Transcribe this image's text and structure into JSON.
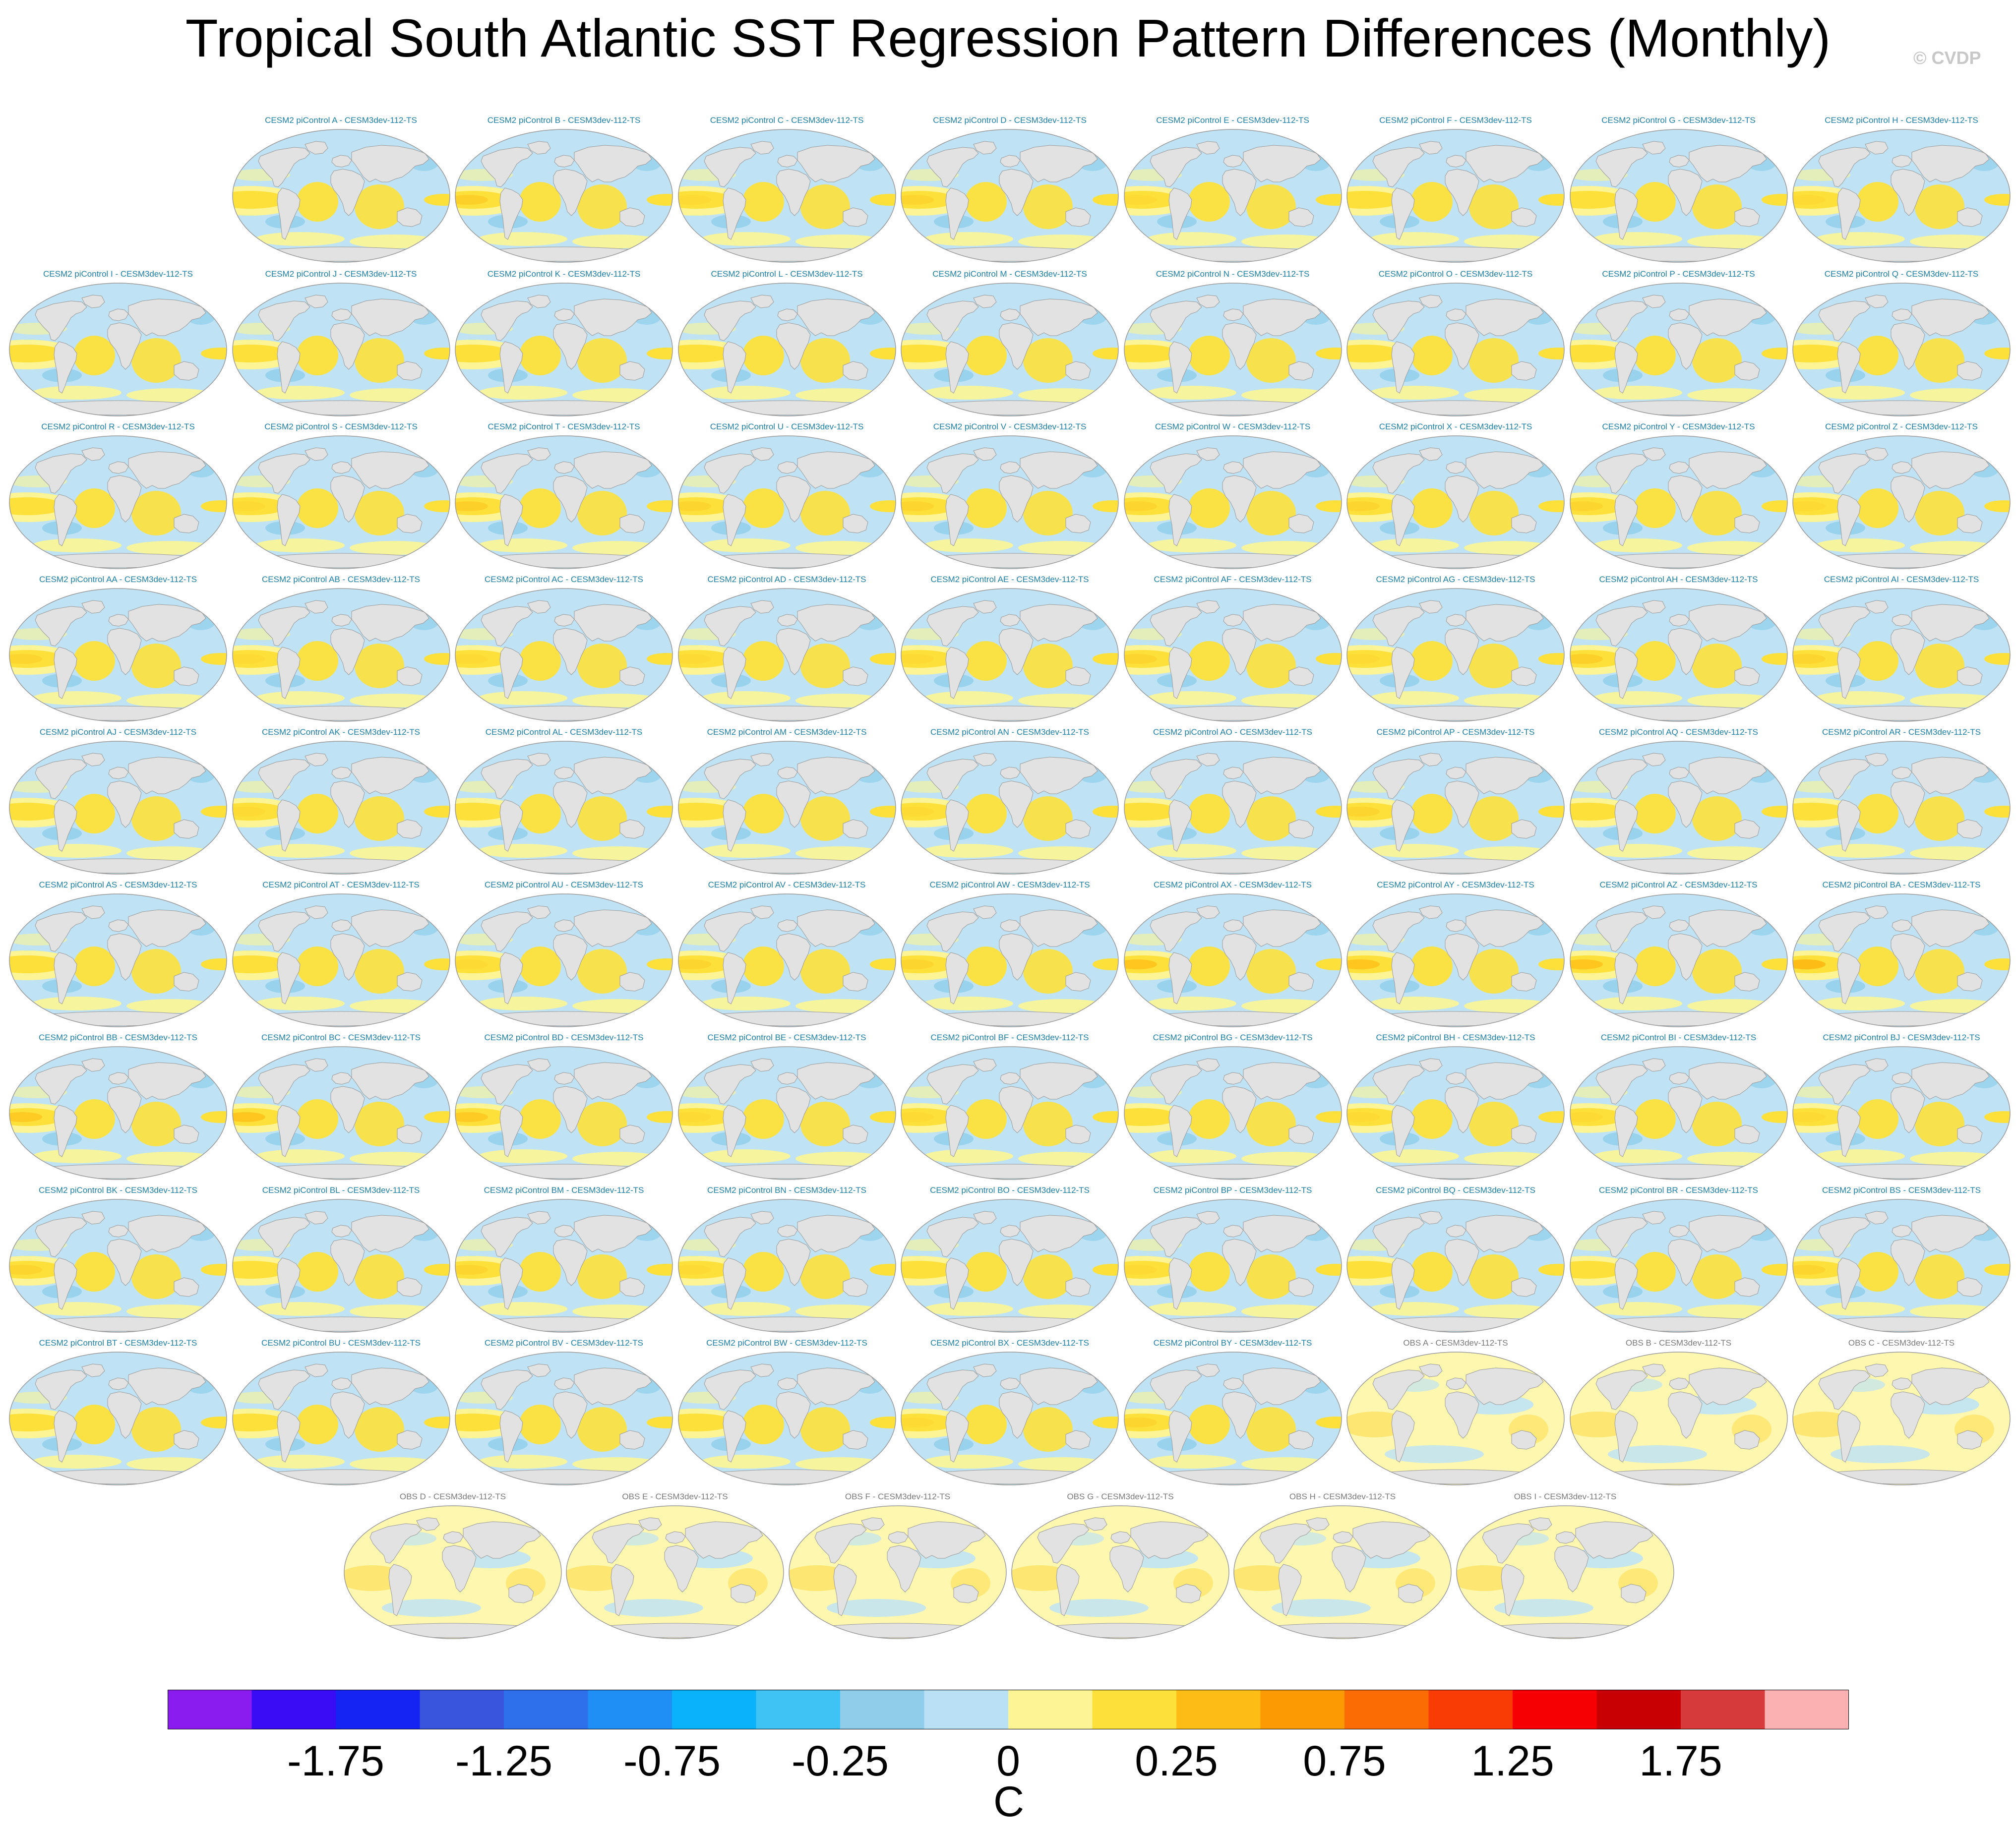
{
  "title": "Tropical South Atlantic SST Regression Pattern Differences (Monthly)",
  "credit": "© CVDP",
  "chart_data": {
    "type": "heatmap",
    "title": "Tropical South Atlantic SST Regression Pattern Differences (Monthly)",
    "projection": "global ellipse, land masked grey",
    "panels": [
      {
        "label": "CESM2 piControl A - CESM3dev-112-TS",
        "group": "model",
        "tint": 0.45
      },
      {
        "label": "CESM2 piControl B - CESM3dev-112-TS",
        "group": "model",
        "tint": 0.65
      },
      {
        "label": "CESM2 piControl C - CESM3dev-112-TS",
        "group": "model",
        "tint": 0.55
      },
      {
        "label": "CESM2 piControl D - CESM3dev-112-TS",
        "group": "model",
        "tint": 0.6
      },
      {
        "label": "CESM2 piControl E - CESM3dev-112-TS",
        "group": "model",
        "tint": 0.55
      },
      {
        "label": "CESM2 piControl F - CESM3dev-112-TS",
        "group": "model",
        "tint": 0.5
      },
      {
        "label": "CESM2 piControl G - CESM3dev-112-TS",
        "group": "model",
        "tint": 0.5
      },
      {
        "label": "CESM2 piControl H - CESM3dev-112-TS",
        "group": "model",
        "tint": 0.55
      },
      {
        "label": "CESM2 piControl I - CESM3dev-112-TS",
        "group": "model",
        "tint": 0.5
      },
      {
        "label": "CESM2 piControl J - CESM3dev-112-TS",
        "group": "model",
        "tint": 0.45
      },
      {
        "label": "CESM2 piControl K - CESM3dev-112-TS",
        "group": "model",
        "tint": 0.45
      },
      {
        "label": "CESM2 piControl L - CESM3dev-112-TS",
        "group": "model",
        "tint": 0.45
      },
      {
        "label": "CESM2 piControl M - CESM3dev-112-TS",
        "group": "model",
        "tint": 0.45
      },
      {
        "label": "CESM2 piControl N - CESM3dev-112-TS",
        "group": "model",
        "tint": 0.4
      },
      {
        "label": "CESM2 piControl O - CESM3dev-112-TS",
        "group": "model",
        "tint": 0.45
      },
      {
        "label": "CESM2 piControl P - CESM3dev-112-TS",
        "group": "model",
        "tint": 0.5
      },
      {
        "label": "CESM2 piControl Q - CESM3dev-112-TS",
        "group": "model",
        "tint": 0.5
      },
      {
        "label": "CESM2 piControl R - CESM3dev-112-TS",
        "group": "model",
        "tint": 0.5
      },
      {
        "label": "CESM2 piControl S - CESM3dev-112-TS",
        "group": "model",
        "tint": 0.55
      },
      {
        "label": "CESM2 piControl T - CESM3dev-112-TS",
        "group": "model",
        "tint": 0.65
      },
      {
        "label": "CESM2 piControl U - CESM3dev-112-TS",
        "group": "model",
        "tint": 0.6
      },
      {
        "label": "CESM2 piControl V - CESM3dev-112-TS",
        "group": "model",
        "tint": 0.6
      },
      {
        "label": "CESM2 piControl W - CESM3dev-112-TS",
        "group": "model",
        "tint": 0.6
      },
      {
        "label": "CESM2 piControl X - CESM3dev-112-TS",
        "group": "model",
        "tint": 0.6
      },
      {
        "label": "CESM2 piControl Y - CESM3dev-112-TS",
        "group": "model",
        "tint": 0.6
      },
      {
        "label": "CESM2 piControl Z - CESM3dev-112-TS",
        "group": "model",
        "tint": 0.55
      },
      {
        "label": "CESM2 piControl AA - CESM3dev-112-TS",
        "group": "model",
        "tint": 0.6
      },
      {
        "label": "CESM2 piControl AB - CESM3dev-112-TS",
        "group": "model",
        "tint": 0.55
      },
      {
        "label": "CESM2 piControl AC - CESM3dev-112-TS",
        "group": "model",
        "tint": 0.55
      },
      {
        "label": "CESM2 piControl AD - CESM3dev-112-TS",
        "group": "model",
        "tint": 0.55
      },
      {
        "label": "CESM2 piControl AE - CESM3dev-112-TS",
        "group": "model",
        "tint": 0.55
      },
      {
        "label": "CESM2 piControl AF - CESM3dev-112-TS",
        "group": "model",
        "tint": 0.6
      },
      {
        "label": "CESM2 piControl AG - CESM3dev-112-TS",
        "group": "model",
        "tint": 0.55
      },
      {
        "label": "CESM2 piControl AH - CESM3dev-112-TS",
        "group": "model",
        "tint": 0.65
      },
      {
        "label": "CESM2 piControl AI - CESM3dev-112-TS",
        "group": "model",
        "tint": 0.6
      },
      {
        "label": "CESM2 piControl AJ - CESM3dev-112-TS",
        "group": "model",
        "tint": 0.5
      },
      {
        "label": "CESM2 piControl AK - CESM3dev-112-TS",
        "group": "model",
        "tint": 0.55
      },
      {
        "label": "CESM2 piControl AL - CESM3dev-112-TS",
        "group": "model",
        "tint": 0.5
      },
      {
        "label": "CESM2 piControl AM - CESM3dev-112-TS",
        "group": "model",
        "tint": 0.5
      },
      {
        "label": "CESM2 piControl AN - CESM3dev-112-TS",
        "group": "model",
        "tint": 0.55
      },
      {
        "label": "CESM2 piControl AO - CESM3dev-112-TS",
        "group": "model",
        "tint": 0.5
      },
      {
        "label": "CESM2 piControl AP - CESM3dev-112-TS",
        "group": "model",
        "tint": 0.6
      },
      {
        "label": "CESM2 piControl AQ - CESM3dev-112-TS",
        "group": "model",
        "tint": 0.5
      },
      {
        "label": "CESM2 piControl AR - CESM3dev-112-TS",
        "group": "model",
        "tint": 0.5
      },
      {
        "label": "CESM2 piControl AS - CESM3dev-112-TS",
        "group": "model",
        "tint": 0.5
      },
      {
        "label": "CESM2 piControl AT - CESM3dev-112-TS",
        "group": "model",
        "tint": 0.5
      },
      {
        "label": "CESM2 piControl AU - CESM3dev-112-TS",
        "group": "model",
        "tint": 0.55
      },
      {
        "label": "CESM2 piControl AV - CESM3dev-112-TS",
        "group": "model",
        "tint": 0.6
      },
      {
        "label": "CESM2 piControl AW - CESM3dev-112-TS",
        "group": "model",
        "tint": 0.6
      },
      {
        "label": "CESM2 piControl AX - CESM3dev-112-TS",
        "group": "model",
        "tint": 0.75
      },
      {
        "label": "CESM2 piControl AY - CESM3dev-112-TS",
        "group": "model",
        "tint": 0.75
      },
      {
        "label": "CESM2 piControl AZ - CESM3dev-112-TS",
        "group": "model",
        "tint": 0.75
      },
      {
        "label": "CESM2 piControl BA - CESM3dev-112-TS",
        "group": "model",
        "tint": 0.85
      },
      {
        "label": "CESM2 piControl BB - CESM3dev-112-TS",
        "group": "model",
        "tint": 0.7
      },
      {
        "label": "CESM2 piControl BC - CESM3dev-112-TS",
        "group": "model",
        "tint": 0.75
      },
      {
        "label": "CESM2 piControl BD - CESM3dev-112-TS",
        "group": "model",
        "tint": 0.7
      },
      {
        "label": "CESM2 piControl BE - CESM3dev-112-TS",
        "group": "model",
        "tint": 0.55
      },
      {
        "label": "CESM2 piControl BF - CESM3dev-112-TS",
        "group": "model",
        "tint": 0.55
      },
      {
        "label": "CESM2 piControl BG - CESM3dev-112-TS",
        "group": "model",
        "tint": 0.5
      },
      {
        "label": "CESM2 piControl BH - CESM3dev-112-TS",
        "group": "model",
        "tint": 0.55
      },
      {
        "label": "CESM2 piControl BI - CESM3dev-112-TS",
        "group": "model",
        "tint": 0.55
      },
      {
        "label": "CESM2 piControl BJ - CESM3dev-112-TS",
        "group": "model",
        "tint": 0.55
      },
      {
        "label": "CESM2 piControl BK - CESM3dev-112-TS",
        "group": "model",
        "tint": 0.6
      },
      {
        "label": "CESM2 piControl BL - CESM3dev-112-TS",
        "group": "model",
        "tint": 0.5
      },
      {
        "label": "CESM2 piControl BM - CESM3dev-112-TS",
        "group": "model",
        "tint": 0.6
      },
      {
        "label": "CESM2 piControl BN - CESM3dev-112-TS",
        "group": "model",
        "tint": 0.55
      },
      {
        "label": "CESM2 piControl BO - CESM3dev-112-TS",
        "group": "model",
        "tint": 0.5
      },
      {
        "label": "CESM2 piControl BP - CESM3dev-112-TS",
        "group": "model",
        "tint": 0.55
      },
      {
        "label": "CESM2 piControl BQ - CESM3dev-112-TS",
        "group": "model",
        "tint": 0.5
      },
      {
        "label": "CESM2 piControl BR - CESM3dev-112-TS",
        "group": "model",
        "tint": 0.5
      },
      {
        "label": "CESM2 piControl BS - CESM3dev-112-TS",
        "group": "model",
        "tint": 0.6
      },
      {
        "label": "CESM2 piControl BT - CESM3dev-112-TS",
        "group": "model",
        "tint": 0.5
      },
      {
        "label": "CESM2 piControl BU - CESM3dev-112-TS",
        "group": "model",
        "tint": 0.5
      },
      {
        "label": "CESM2 piControl BV - CESM3dev-112-TS",
        "group": "model",
        "tint": 0.5
      },
      {
        "label": "CESM2 piControl BW - CESM3dev-112-TS",
        "group": "model",
        "tint": 0.5
      },
      {
        "label": "CESM2 piControl BX - CESM3dev-112-TS",
        "group": "model",
        "tint": 0.55
      },
      {
        "label": "CESM2 piControl BY - CESM3dev-112-TS",
        "group": "model",
        "tint": 0.6
      },
      {
        "label": "OBS A - CESM3dev-112-TS",
        "group": "obs",
        "tint": 0.3
      },
      {
        "label": "OBS B - CESM3dev-112-TS",
        "group": "obs",
        "tint": 0.3
      },
      {
        "label": "OBS C - CESM3dev-112-TS",
        "group": "obs",
        "tint": 0.3
      },
      {
        "label": "OBS D - CESM3dev-112-TS",
        "group": "obs",
        "tint": 0.3
      },
      {
        "label": "OBS E - CESM3dev-112-TS",
        "group": "obs",
        "tint": 0.3
      },
      {
        "label": "OBS F - CESM3dev-112-TS",
        "group": "obs",
        "tint": 0.3
      },
      {
        "label": "OBS G - CESM3dev-112-TS",
        "group": "obs",
        "tint": 0.3
      },
      {
        "label": "OBS H - CESM3dev-112-TS",
        "group": "obs",
        "tint": 0.3
      },
      {
        "label": "OBS I - CESM3dev-112-TS",
        "group": "obs",
        "tint": 0.3
      }
    ],
    "colorbar": {
      "unit": "C",
      "levels": [
        -2.0,
        -1.75,
        -1.5,
        -1.25,
        -1.0,
        -0.75,
        -0.5,
        -0.25,
        -0.1,
        0,
        0.1,
        0.25,
        0.5,
        0.75,
        1.0,
        1.25,
        1.5,
        1.75,
        2.0
      ],
      "colors": [
        "#8a1cf0",
        "#3a0cf5",
        "#1624f3",
        "#3955dd",
        "#2e6fec",
        "#1f8ff5",
        "#0ab2fb",
        "#3fc3f4",
        "#8fcdeb",
        "#b9e0f4",
        "#fdf595",
        "#fde03a",
        "#fdbd16",
        "#fc9a04",
        "#fb6d04",
        "#f93b06",
        "#f60003",
        "#c80004",
        "#d63a3a",
        "#fbb1b1"
      ],
      "tick_labels": [
        "-1.75",
        "-1.25",
        "-0.75",
        "-0.25",
        "0",
        "0.25",
        "0.75",
        "1.25",
        "1.75"
      ],
      "tick_values": [
        -1.75,
        -1.25,
        -0.75,
        -0.25,
        0,
        0.25,
        0.75,
        1.25,
        1.75
      ]
    }
  }
}
